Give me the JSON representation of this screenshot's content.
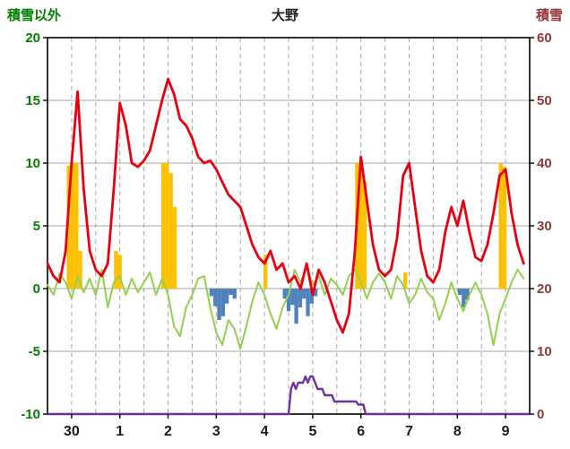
{
  "header": {
    "left_axis_title": "積雪以外",
    "station_title": "大野",
    "right_axis_title": "積雪"
  },
  "chart_data": {
    "type": "line",
    "title": "大野",
    "grid": true,
    "left_axis": {
      "label": "積雪以外",
      "min": -10,
      "max": 20,
      "ticks": [
        20,
        15,
        10,
        5,
        0,
        -5,
        -10
      ],
      "color": "#008000"
    },
    "right_axis": {
      "label": "積雪",
      "min": 0,
      "max": 60,
      "ticks": [
        60,
        50,
        40,
        30,
        20,
        10,
        0
      ],
      "color": "#953735"
    },
    "x_axis": {
      "labels": [
        "30",
        "1",
        "2",
        "3",
        "4",
        "5",
        "6",
        "7",
        "8",
        "9"
      ],
      "days": 10,
      "gridline_every_days": 0.5,
      "label_color": "#1a1a1a"
    },
    "colors": {
      "red_line": "#e60012",
      "green_line": "#92d050",
      "orange_bars": "#ffc000",
      "blue_bars": "#4f81bd",
      "purple_line": "#7030a0",
      "gridline": "#a6a6a6",
      "frame": "#000000"
    },
    "series": [
      {
        "name": "temperature-red",
        "type": "line",
        "axis": "left",
        "color": "#e60012",
        "width": 2.8,
        "points": [
          [
            0,
            2
          ],
          [
            0.125,
            1
          ],
          [
            0.25,
            0.5
          ],
          [
            0.375,
            3
          ],
          [
            0.5,
            10
          ],
          [
            0.625,
            15.7
          ],
          [
            0.75,
            8
          ],
          [
            0.875,
            3
          ],
          [
            1,
            1.5
          ],
          [
            1.125,
            1
          ],
          [
            1.25,
            2
          ],
          [
            1.375,
            8
          ],
          [
            1.5,
            14.8
          ],
          [
            1.625,
            13
          ],
          [
            1.75,
            10
          ],
          [
            1.875,
            9.7
          ],
          [
            2,
            10.2
          ],
          [
            2.125,
            11
          ],
          [
            2.25,
            13
          ],
          [
            2.375,
            15
          ],
          [
            2.5,
            16.7
          ],
          [
            2.625,
            15.5
          ],
          [
            2.75,
            13.5
          ],
          [
            2.875,
            13
          ],
          [
            3,
            12
          ],
          [
            3.125,
            10.5
          ],
          [
            3.25,
            10
          ],
          [
            3.375,
            10.2
          ],
          [
            3.5,
            9.5
          ],
          [
            3.625,
            8.5
          ],
          [
            3.75,
            7.5
          ],
          [
            3.875,
            7
          ],
          [
            4,
            6.5
          ],
          [
            4.125,
            5
          ],
          [
            4.25,
            3.5
          ],
          [
            4.375,
            2.5
          ],
          [
            4.5,
            2
          ],
          [
            4.625,
            3
          ],
          [
            4.75,
            1.5
          ],
          [
            4.875,
            2
          ],
          [
            5,
            0.5
          ],
          [
            5.125,
            1
          ],
          [
            5.25,
            0
          ],
          [
            5.375,
            2
          ],
          [
            5.5,
            -0.5
          ],
          [
            5.625,
            1.5
          ],
          [
            5.75,
            0.5
          ],
          [
            5.875,
            -1
          ],
          [
            6,
            -2.5
          ],
          [
            6.125,
            -3.5
          ],
          [
            6.25,
            -2
          ],
          [
            6.375,
            3
          ],
          [
            6.5,
            10.5
          ],
          [
            6.625,
            7
          ],
          [
            6.75,
            3.5
          ],
          [
            6.875,
            1.5
          ],
          [
            7,
            1
          ],
          [
            7.125,
            1.5
          ],
          [
            7.25,
            4
          ],
          [
            7.375,
            9
          ],
          [
            7.5,
            10
          ],
          [
            7.625,
            6.5
          ],
          [
            7.75,
            3
          ],
          [
            7.875,
            1
          ],
          [
            8,
            0.5
          ],
          [
            8.125,
            1.5
          ],
          [
            8.25,
            4.5
          ],
          [
            8.375,
            6.5
          ],
          [
            8.5,
            5
          ],
          [
            8.625,
            7
          ],
          [
            8.75,
            4.5
          ],
          [
            8.875,
            2.5
          ],
          [
            9,
            2.2
          ],
          [
            9.125,
            3.5
          ],
          [
            9.25,
            6
          ],
          [
            9.375,
            9
          ],
          [
            9.5,
            9.5
          ],
          [
            9.625,
            6
          ],
          [
            9.75,
            3.5
          ],
          [
            9.875,
            2
          ]
        ]
      },
      {
        "name": "green-oscillation",
        "type": "line",
        "axis": "left",
        "color": "#92d050",
        "width": 2,
        "points": [
          [
            0,
            0.3
          ],
          [
            0.125,
            -0.5
          ],
          [
            0.25,
            1.2
          ],
          [
            0.375,
            0.5
          ],
          [
            0.5,
            -0.8
          ],
          [
            0.625,
            1
          ],
          [
            0.75,
            -0.3
          ],
          [
            0.875,
            0.8
          ],
          [
            1,
            -0.5
          ],
          [
            1.125,
            1.5
          ],
          [
            1.25,
            -1.5
          ],
          [
            1.375,
            0.5
          ],
          [
            1.5,
            1
          ],
          [
            1.625,
            -0.5
          ],
          [
            1.75,
            0.8
          ],
          [
            1.875,
            -0.3
          ],
          [
            2,
            0.5
          ],
          [
            2.125,
            1.3
          ],
          [
            2.25,
            -0.5
          ],
          [
            2.375,
            0.8
          ],
          [
            2.5,
            -0.5
          ],
          [
            2.625,
            -3
          ],
          [
            2.75,
            -3.8
          ],
          [
            2.875,
            -1.5
          ],
          [
            3,
            -0.5
          ],
          [
            3.125,
            0.8
          ],
          [
            3.25,
            1
          ],
          [
            3.375,
            -1.5
          ],
          [
            3.5,
            -3.5
          ],
          [
            3.625,
            -4.5
          ],
          [
            3.75,
            -2.5
          ],
          [
            3.875,
            -3.2
          ],
          [
            4,
            -4.8
          ],
          [
            4.125,
            -3
          ],
          [
            4.25,
            -1
          ],
          [
            4.375,
            0.5
          ],
          [
            4.5,
            -0.5
          ],
          [
            4.625,
            -2
          ],
          [
            4.75,
            -3.2
          ],
          [
            4.875,
            -1.5
          ],
          [
            5,
            -0.5
          ],
          [
            5.125,
            1.5
          ],
          [
            5.25,
            0.5
          ],
          [
            5.375,
            1.8
          ],
          [
            5.5,
            0.3
          ],
          [
            5.625,
            1
          ],
          [
            5.75,
            -0.5
          ],
          [
            5.875,
            0.8
          ],
          [
            6,
            0.3
          ],
          [
            6.125,
            -0.5
          ],
          [
            6.25,
            1
          ],
          [
            6.375,
            1.5
          ],
          [
            6.5,
            0.5
          ],
          [
            6.625,
            -0.8
          ],
          [
            6.75,
            0.5
          ],
          [
            6.875,
            1.2
          ],
          [
            7,
            0.5
          ],
          [
            7.125,
            -0.8
          ],
          [
            7.25,
            1
          ],
          [
            7.375,
            0.3
          ],
          [
            7.5,
            -1.2
          ],
          [
            7.625,
            -0.5
          ],
          [
            7.75,
            0.8
          ],
          [
            7.875,
            -0.3
          ],
          [
            8,
            -0.8
          ],
          [
            8.125,
            -2.5
          ],
          [
            8.25,
            -1.2
          ],
          [
            8.375,
            0.5
          ],
          [
            8.5,
            -0.8
          ],
          [
            8.625,
            -1.8
          ],
          [
            8.75,
            -0.5
          ],
          [
            8.875,
            0.5
          ],
          [
            9,
            -0.5
          ],
          [
            9.125,
            -2
          ],
          [
            9.25,
            -4.5
          ],
          [
            9.375,
            -2
          ],
          [
            9.5,
            -0.8
          ],
          [
            9.625,
            0.5
          ],
          [
            9.75,
            1.5
          ],
          [
            9.875,
            0.8
          ]
        ]
      },
      {
        "name": "sunshine-orange-bars",
        "type": "bar",
        "axis": "left",
        "color": "#ffc000",
        "bar_width_days": 0.08,
        "points": [
          [
            0.44,
            9.8
          ],
          [
            0.52,
            10
          ],
          [
            0.6,
            10
          ],
          [
            0.68,
            3
          ],
          [
            1.42,
            3
          ],
          [
            1.5,
            2.7
          ],
          [
            2.4,
            10
          ],
          [
            2.48,
            10
          ],
          [
            2.56,
            9.2
          ],
          [
            2.64,
            6.5
          ],
          [
            4.52,
            2.7
          ],
          [
            6.42,
            10
          ],
          [
            6.5,
            10
          ],
          [
            6.58,
            8.5
          ],
          [
            7.42,
            1.3
          ],
          [
            9.4,
            10
          ],
          [
            9.48,
            9.7
          ]
        ]
      },
      {
        "name": "precipitation-blue-bars",
        "type": "bar",
        "axis": "left",
        "color": "#4f81bd",
        "bar_width_days": 0.08,
        "points": [
          [
            3.4,
            -0.6
          ],
          [
            3.48,
            -1.4
          ],
          [
            3.56,
            -2.5
          ],
          [
            3.64,
            -2.2
          ],
          [
            3.72,
            -1.2
          ],
          [
            3.8,
            -0.5
          ],
          [
            3.88,
            -0.8
          ],
          [
            4.92,
            -0.8
          ],
          [
            5,
            -1.8
          ],
          [
            5.08,
            -1.3
          ],
          [
            5.16,
            -2.8
          ],
          [
            5.24,
            -1.5
          ],
          [
            5.32,
            -0.8
          ],
          [
            5.4,
            -2.2
          ],
          [
            5.48,
            -1.2
          ],
          [
            5.56,
            -0.6
          ],
          [
            8.55,
            -0.5
          ],
          [
            8.63,
            -1.5
          ],
          [
            8.71,
            -0.9
          ]
        ]
      },
      {
        "name": "snow-depth-purple",
        "type": "line",
        "axis": "right",
        "color": "#7030a0",
        "width": 2.4,
        "points": [
          [
            0,
            0
          ],
          [
            5,
            0
          ],
          [
            5.05,
            4
          ],
          [
            5.1,
            5
          ],
          [
            5.15,
            4
          ],
          [
            5.2,
            5
          ],
          [
            5.3,
            5
          ],
          [
            5.35,
            6
          ],
          [
            5.4,
            5
          ],
          [
            5.45,
            6
          ],
          [
            5.5,
            6
          ],
          [
            5.55,
            5
          ],
          [
            5.6,
            4
          ],
          [
            5.7,
            4
          ],
          [
            5.75,
            3
          ],
          [
            5.9,
            3
          ],
          [
            5.95,
            2
          ],
          [
            6.4,
            2
          ],
          [
            6.45,
            1.5
          ],
          [
            6.55,
            1.5
          ],
          [
            6.6,
            0
          ],
          [
            10,
            0
          ]
        ]
      }
    ]
  }
}
